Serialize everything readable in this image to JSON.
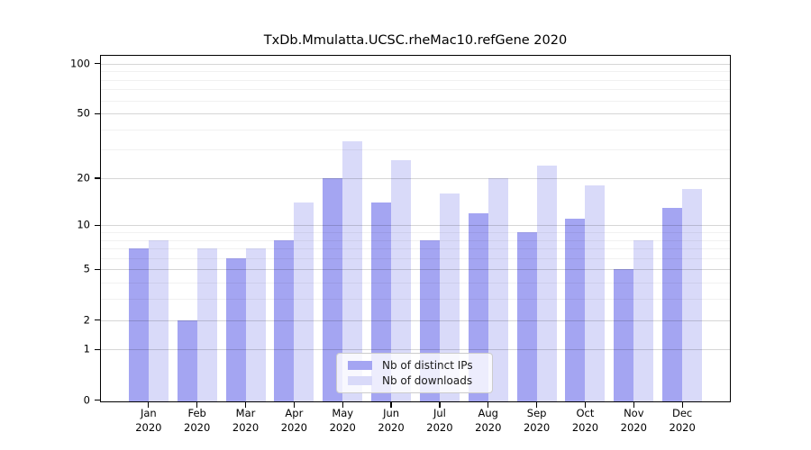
{
  "chart_data": {
    "type": "bar",
    "title": "TxDb.Mmulatta.UCSC.rheMac10.refGene 2020",
    "categories": [
      "Jan",
      "Feb",
      "Mar",
      "Apr",
      "May",
      "Jun",
      "Jul",
      "Aug",
      "Sep",
      "Oct",
      "Nov",
      "Dec"
    ],
    "x_tick_second_line": "2020",
    "series": [
      {
        "name": "Nb of distinct IPs",
        "color": "#a4a5f2",
        "values": [
          7,
          2,
          6,
          8,
          20,
          14,
          8,
          12,
          9,
          11,
          5,
          13
        ]
      },
      {
        "name": "Nb of downloads",
        "color": "#d9daf9",
        "values": [
          8,
          7,
          7,
          14,
          34,
          26,
          16,
          20,
          24,
          18,
          8,
          17
        ]
      }
    ],
    "yscale": "log1p",
    "ylim": [
      0,
      113
    ],
    "yticks": [
      0,
      1,
      2,
      5,
      10,
      20,
      50,
      100
    ],
    "yticks_minor": [
      3,
      4,
      6,
      7,
      8,
      9,
      30,
      40,
      60,
      70,
      80,
      90
    ],
    "grid": true,
    "legend_position": "lower center-right inside plot"
  }
}
